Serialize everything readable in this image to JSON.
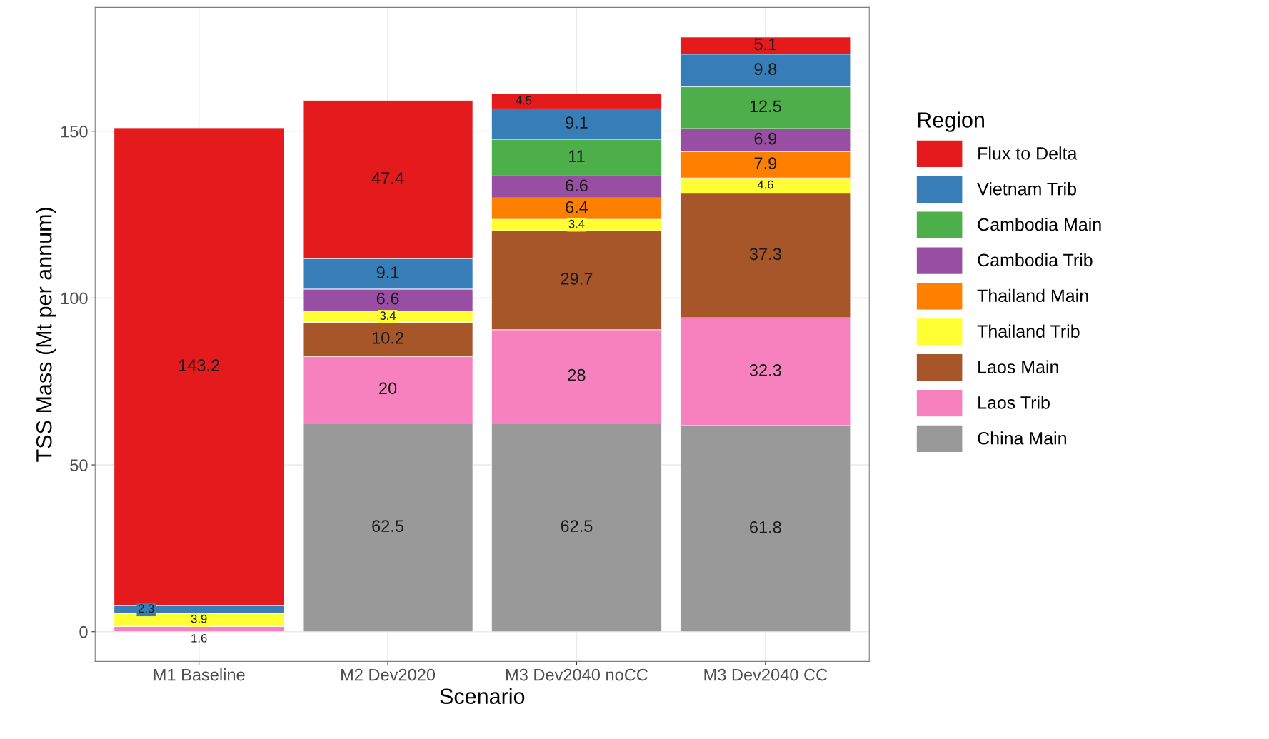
{
  "chart_data": {
    "type": "bar",
    "stacked": true,
    "xlabel": "Scenario",
    "ylabel": "TSS Mass (Mt per annum)",
    "legend_title": "Region",
    "categories": [
      "M1 Baseline",
      "M2 Dev2020",
      "M3 Dev2040 noCC",
      "M3 Dev2040 CC"
    ],
    "series": [
      {
        "name": "China Main",
        "color": "#999999",
        "values": [
          null,
          62.5,
          62.5,
          61.8
        ]
      },
      {
        "name": "Laos Trib",
        "color": "#f781bf",
        "values": [
          1.6,
          20,
          28,
          32.3
        ]
      },
      {
        "name": "Laos Main",
        "color": "#a65628",
        "values": [
          null,
          10.2,
          29.7,
          37.3
        ]
      },
      {
        "name": "Thailand Trib",
        "color": "#ffff33",
        "values": [
          3.9,
          3.4,
          3.4,
          4.6
        ]
      },
      {
        "name": "Thailand Main",
        "color": "#ff7f00",
        "values": [
          null,
          null,
          6.4,
          7.9
        ]
      },
      {
        "name": "Cambodia Trib",
        "color": "#984ea3",
        "values": [
          null,
          6.6,
          6.6,
          6.9
        ]
      },
      {
        "name": "Cambodia Main",
        "color": "#4daf4a",
        "values": [
          null,
          null,
          11,
          12.5
        ]
      },
      {
        "name": "Vietnam Trib",
        "color": "#377eb8",
        "values": [
          2.3,
          9.1,
          9.1,
          9.8
        ]
      },
      {
        "name": "Flux to Delta",
        "color": "#e41a1c",
        "values": [
          143.2,
          47.4,
          4.5,
          5.1
        ]
      }
    ],
    "ylim": [
      -8.9,
      187.1
    ],
    "yticks": [
      0,
      50,
      100,
      150
    ],
    "grid": true,
    "legend": "right",
    "data_labels": true
  }
}
